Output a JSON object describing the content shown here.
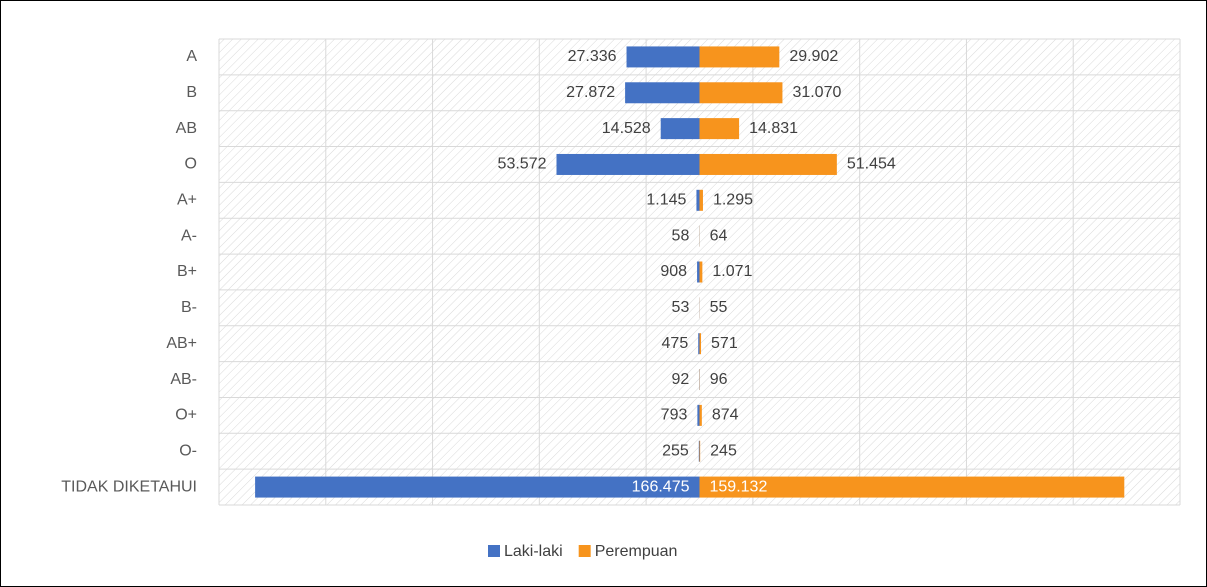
{
  "chart_data": {
    "type": "bar",
    "orientation": "horizontal",
    "layout": "diverging",
    "categories": [
      "A",
      "B",
      "AB",
      "O",
      "A+",
      "A-",
      "B+",
      "B-",
      "AB+",
      "AB-",
      "O+",
      "O-",
      "TIDAK DIKETAHUI"
    ],
    "series": [
      {
        "name": "Laki-laki",
        "color": "#4472c4",
        "values": [
          27336,
          27872,
          14528,
          53572,
          1145,
          58,
          908,
          53,
          475,
          92,
          793,
          255,
          166475
        ],
        "value_labels": [
          "27.336",
          "27.872",
          "14.528",
          "53.572",
          "1.145",
          "58",
          "908",
          "53",
          "475",
          "92",
          "793",
          "255",
          "166.475"
        ]
      },
      {
        "name": "Perempuan",
        "color": "#f7941d",
        "values": [
          29902,
          31070,
          14831,
          51454,
          1295,
          64,
          1071,
          55,
          571,
          96,
          874,
          245,
          159132
        ],
        "value_labels": [
          "29.902",
          "31.070",
          "14.831",
          "51.454",
          "1.295",
          "64",
          "1.071",
          "55",
          "571",
          "96",
          "874",
          "245",
          "159.132"
        ]
      }
    ],
    "xlim": [
      -180000,
      180000
    ],
    "xticks": [
      -180000,
      -140000,
      -100000,
      -60000,
      -20000,
      20000,
      60000,
      100000,
      140000,
      180000
    ],
    "grid": true,
    "legend": "bottom"
  }
}
